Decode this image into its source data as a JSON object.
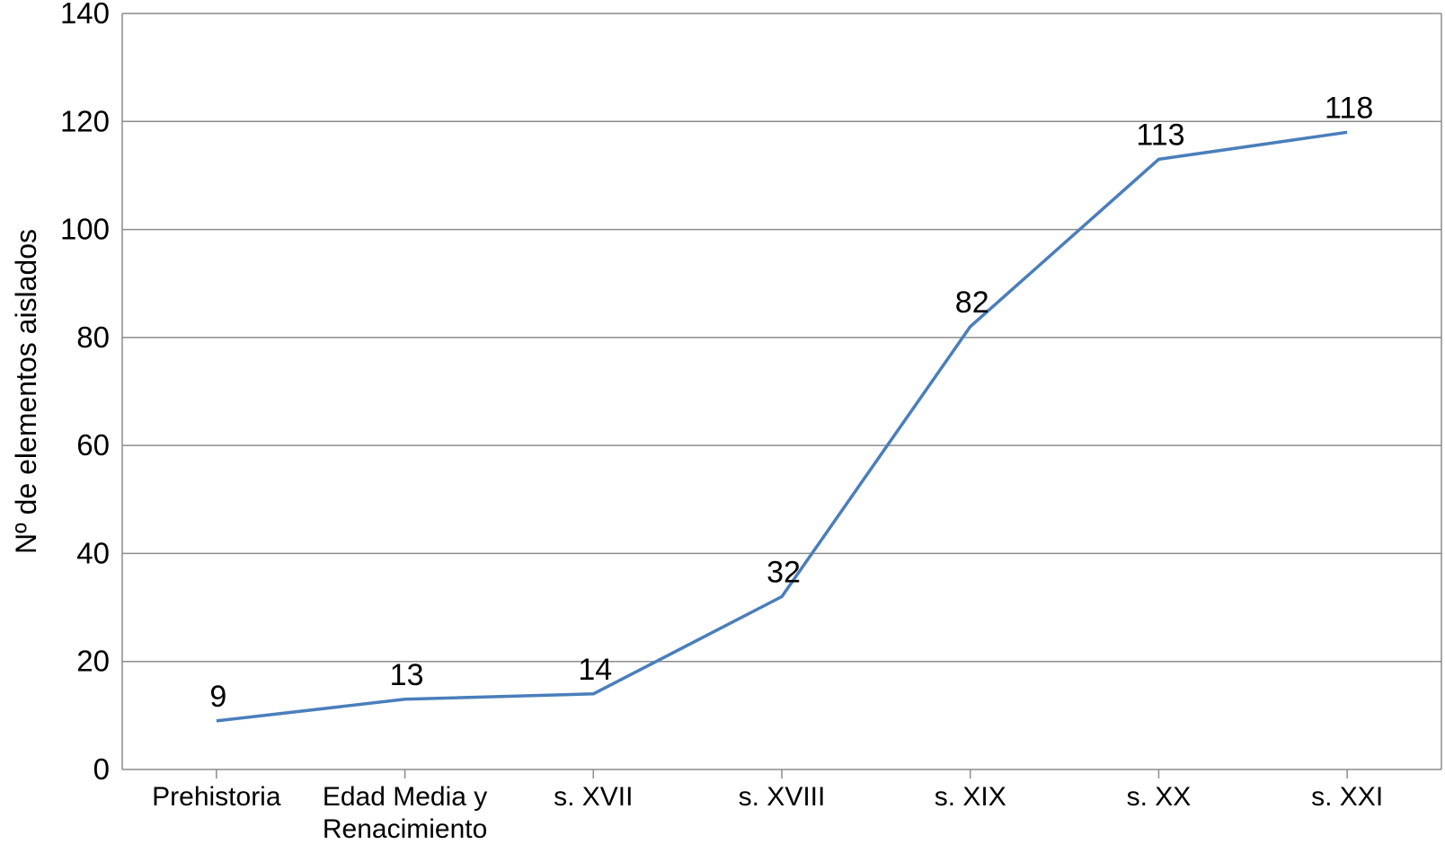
{
  "chart_data": {
    "type": "line",
    "title": "",
    "xlabel": "",
    "ylabel": "Nº de elementos aislados",
    "categories": [
      [
        "Prehistoria"
      ],
      [
        "Edad Media y",
        "Renacimiento"
      ],
      [
        "s. XVII"
      ],
      [
        "s. XVIII"
      ],
      [
        "s. XIX"
      ],
      [
        "s. XX"
      ],
      [
        "s. XXI"
      ]
    ],
    "series": [
      {
        "values": [
          9,
          13,
          14,
          32,
          82,
          113,
          118
        ],
        "color": "#4a7ebb"
      }
    ],
    "ylim": [
      0,
      140
    ],
    "yticks": [
      0,
      20,
      40,
      60,
      80,
      100,
      120,
      140
    ],
    "grid": true,
    "legend": "none"
  }
}
